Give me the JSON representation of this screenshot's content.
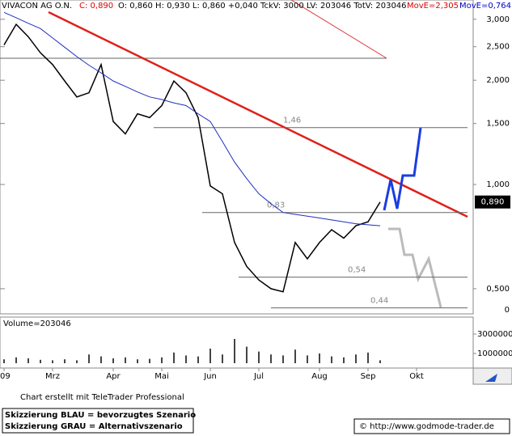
{
  "header": {
    "name": "VIVACON AG O.N.",
    "close": "C: 0,890",
    "stats": "O: 0,860 H: 0,930 L: 0,860 +0,040 TckV: 3000 LV: 203046 TotV: 203046",
    "move1": "MovE=2,305",
    "move2": "MovE=0,764"
  },
  "chart_data": {
    "type": "line",
    "log_scale": true,
    "categories": [
      "'09",
      null,
      null,
      null,
      "Mrz",
      null,
      null,
      null,
      null,
      "Apr",
      null,
      null,
      null,
      "Mai",
      null,
      null,
      null,
      "Jun",
      null,
      null,
      null,
      "Jul",
      null,
      null,
      null,
      null,
      "Aug",
      null,
      null,
      null,
      "Sep",
      null,
      null,
      null,
      "Okt",
      null,
      null,
      null
    ],
    "ylim": [
      0.423,
      3.41
    ],
    "yticks": [
      {
        "value": 3,
        "label": "3,000"
      },
      {
        "value": 2.5,
        "label": "2,500"
      },
      {
        "value": 2,
        "label": "2,000"
      },
      {
        "value": 1.5,
        "label": "1,500"
      },
      {
        "value": 1,
        "label": "1,000"
      },
      {
        "value": 0.5,
        "label": "0,500"
      }
    ],
    "bottom_label": "0",
    "series": [
      {
        "name": "VIVACON AG O.N.",
        "color": "#000000",
        "values": [
          2.53,
          2.9,
          2.67,
          2.4,
          2.22,
          1.99,
          1.79,
          1.84,
          2.22,
          1.52,
          1.4,
          1.6,
          1.56,
          1.69,
          1.99,
          1.84,
          1.56,
          0.99,
          0.94,
          0.68,
          0.58,
          0.53,
          0.5,
          0.49,
          0.68,
          0.61,
          0.68,
          0.74,
          0.7,
          0.76,
          0.78,
          0.89,
          null,
          null,
          null,
          null,
          null,
          null
        ]
      },
      {
        "name": "MovE",
        "color": "#1f2fbf",
        "values": [
          3.14,
          3.03,
          2.92,
          2.82,
          2.65,
          2.49,
          2.34,
          2.21,
          2.1,
          1.99,
          1.92,
          1.85,
          1.79,
          1.76,
          1.72,
          1.69,
          1.6,
          1.52,
          1.33,
          1.16,
          1.04,
          0.94,
          0.88,
          0.83,
          0.82,
          0.81,
          0.8,
          0.79,
          0.78,
          0.77,
          0.765,
          0.76,
          null,
          null,
          null,
          null,
          null,
          null
        ]
      }
    ],
    "levels": [
      {
        "value": 1.46,
        "label": "1,46"
      },
      {
        "value": 0.83,
        "label": "0,83"
      },
      {
        "value": 0.54,
        "label": "0,54"
      },
      {
        "value": 0.44,
        "label": "0,44"
      }
    ],
    "last_label": {
      "value": 0.89,
      "label": "0,890"
    },
    "volume": {
      "label": "Volume=203046",
      "ylim": [
        0,
        4750000
      ],
      "yticks": [
        3000000,
        1000000
      ],
      "values": [
        400000,
        600000,
        500000,
        350000,
        300000,
        400000,
        300000,
        900000,
        700000,
        500000,
        600000,
        400000,
        450000,
        600000,
        1100000,
        800000,
        700000,
        1500000,
        900000,
        2500000,
        1700000,
        1200000,
        900000,
        800000,
        1400000,
        800000,
        1000000,
        700000,
        600000,
        900000,
        1100000,
        300000,
        null,
        null,
        null,
        null,
        null,
        null
      ]
    }
  },
  "footer": {
    "credit": "Chart erstellt mit TeleTrader Professional",
    "blue": "Skizzierung BLAU = bevorzugtes Szenario",
    "grey": "Skizzierung GRAU = Alternativszenario",
    "url": "© http://www.godmode-trader.de"
  }
}
